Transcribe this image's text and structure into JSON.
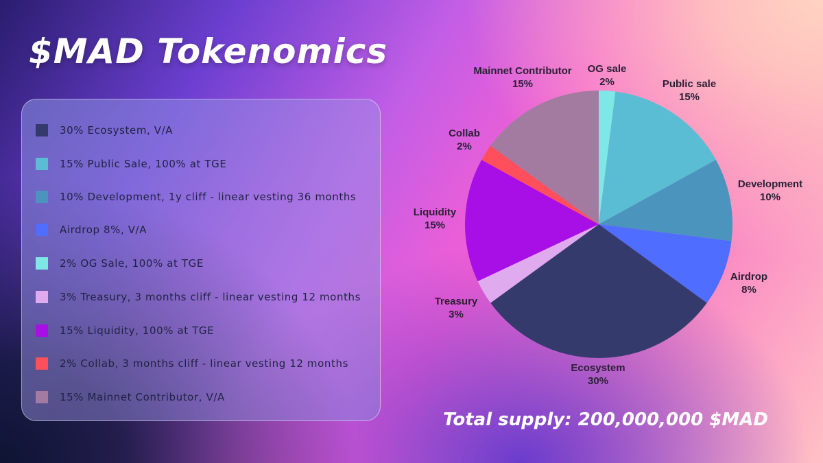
{
  "title": "$MAD Tokenomics",
  "total_supply": "Total supply: 200,000,000 $MAD",
  "legend": [
    {
      "text": "30% Ecosystem, V/A",
      "color": "#353a6c"
    },
    {
      "text": "15% Public Sale, 100% at TGE",
      "color": "#5bbdd3"
    },
    {
      "text": "10% Development, 1y cliff - linear vesting 36 months",
      "color": "#4a94bd"
    },
    {
      "text": "Airdrop 8%, V/A",
      "color": "#4f6dff"
    },
    {
      "text": "2% OG Sale, 100% at TGE",
      "color": "#7ee8e6"
    },
    {
      "text": "3% Treasury, 3 months cliff - linear vesting 12 months",
      "color": "#e0aaee"
    },
    {
      "text": "15% Liquidity, 100% at TGE",
      "color": "#a80ee6"
    },
    {
      "text": "2% Collab, 3 months cliff - linear vesting 12 months",
      "color": "#ff4f5d"
    },
    {
      "text": "15% Mainnet Contributor, V/A",
      "color": "#a47ba0"
    }
  ],
  "chart_data": {
    "type": "pie",
    "title": "",
    "slices": [
      {
        "label": "OG sale",
        "value": 2,
        "value_label": "2%",
        "color": "#7ee8e6"
      },
      {
        "label": "Public sale",
        "value": 15,
        "value_label": "15%",
        "color": "#5bbdd3"
      },
      {
        "label": "Development",
        "value": 10,
        "value_label": "10%",
        "color": "#4a94bd"
      },
      {
        "label": "Airdrop",
        "value": 8,
        "value_label": "8%",
        "color": "#4f6dff"
      },
      {
        "label": "Ecosystem",
        "value": 30,
        "value_label": "30%",
        "color": "#353a6c"
      },
      {
        "label": "Treasury",
        "value": 3,
        "value_label": "3%",
        "color": "#e0aaee"
      },
      {
        "label": "Liquidity",
        "value": 15,
        "value_label": "15%",
        "color": "#a80ee6"
      },
      {
        "label": "Collab",
        "value": 2,
        "value_label": "2%",
        "color": "#ff4f5d"
      },
      {
        "label": "Mainnet Contributor",
        "value": 15,
        "value_label": "15%",
        "color": "#a47ba0"
      }
    ]
  }
}
